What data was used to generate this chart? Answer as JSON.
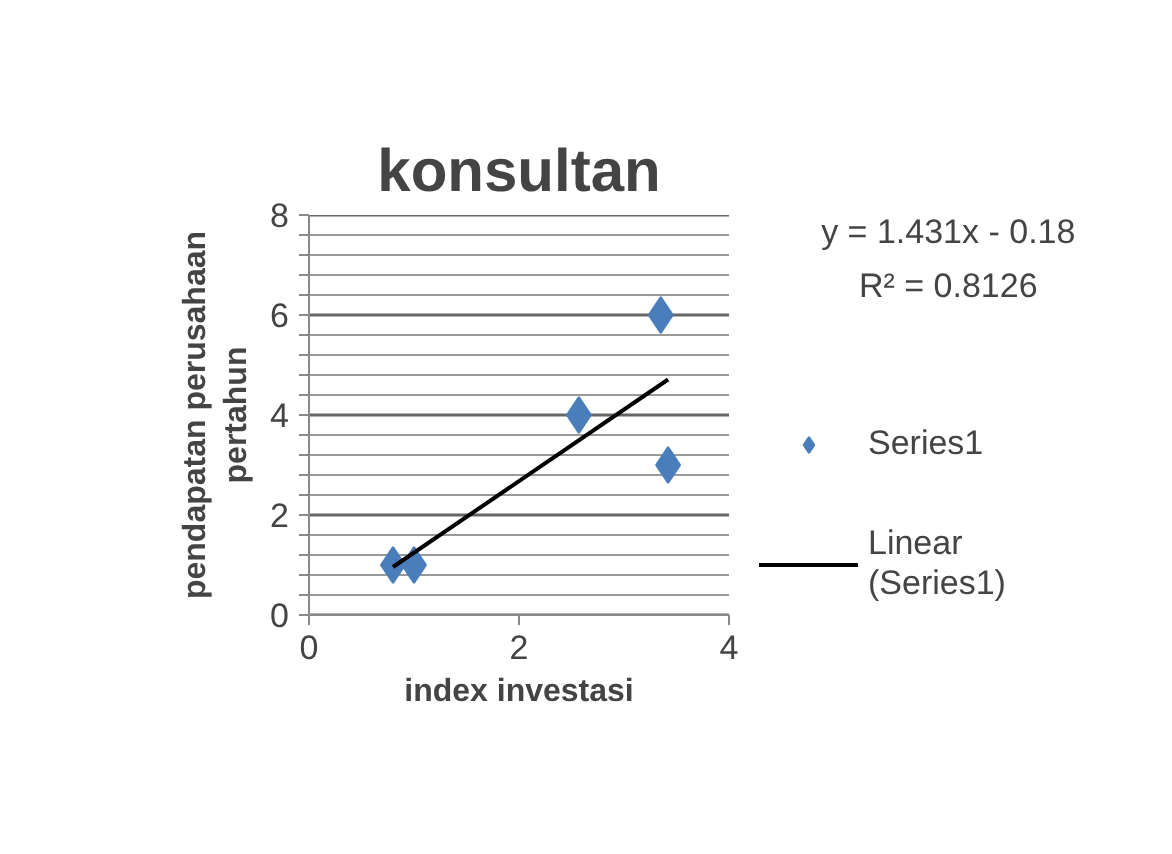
{
  "chart_data": {
    "type": "scatter",
    "title": "konsultan",
    "xlabel": "index investasi",
    "ylabel": "pendapatan perusahaan\npertahun",
    "x": [
      0.8,
      1.0,
      2.57,
      3.35,
      3.42
    ],
    "series": [
      {
        "name": "Series1",
        "color": "#4a7ebb",
        "values": [
          1,
          1,
          4,
          6,
          3
        ],
        "marker": "diamond"
      },
      {
        "name": "Linear (Series1)",
        "type": "line",
        "color": "#000000",
        "x": [
          0.8,
          3.42
        ],
        "values": [
          0.96,
          4.71
        ],
        "line_style": "solid"
      }
    ],
    "annotations": [
      "y = 1.431x - 0.18",
      "R² = 0.8126"
    ],
    "xlim": [
      0,
      4
    ],
    "xticks": [
      0,
      2,
      4
    ],
    "ylim": [
      0,
      8
    ],
    "yticks": [
      0,
      {
        "value": 0.4,
        "label": null
      },
      {
        "value": 0.8,
        "label": null
      },
      {
        "value": 1.2,
        "label": null
      },
      {
        "value": 1.6,
        "label": null
      },
      2,
      {
        "value": 2.4,
        "label": null
      },
      {
        "value": 2.8,
        "label": null
      },
      {
        "value": 3.2,
        "label": null
      },
      {
        "value": 3.6,
        "label": null
      },
      4,
      {
        "value": 4.4,
        "label": null
      },
      {
        "value": 4.8,
        "label": null
      },
      {
        "value": 5.2,
        "label": null
      },
      {
        "value": 5.6,
        "label": null
      },
      6,
      {
        "value": 6.4,
        "label": null
      },
      {
        "value": 6.8,
        "label": null
      },
      {
        "value": 7.2,
        "label": null
      },
      {
        "value": 7.6,
        "label": null
      },
      8
    ],
    "grid": "y",
    "legend": "right"
  }
}
